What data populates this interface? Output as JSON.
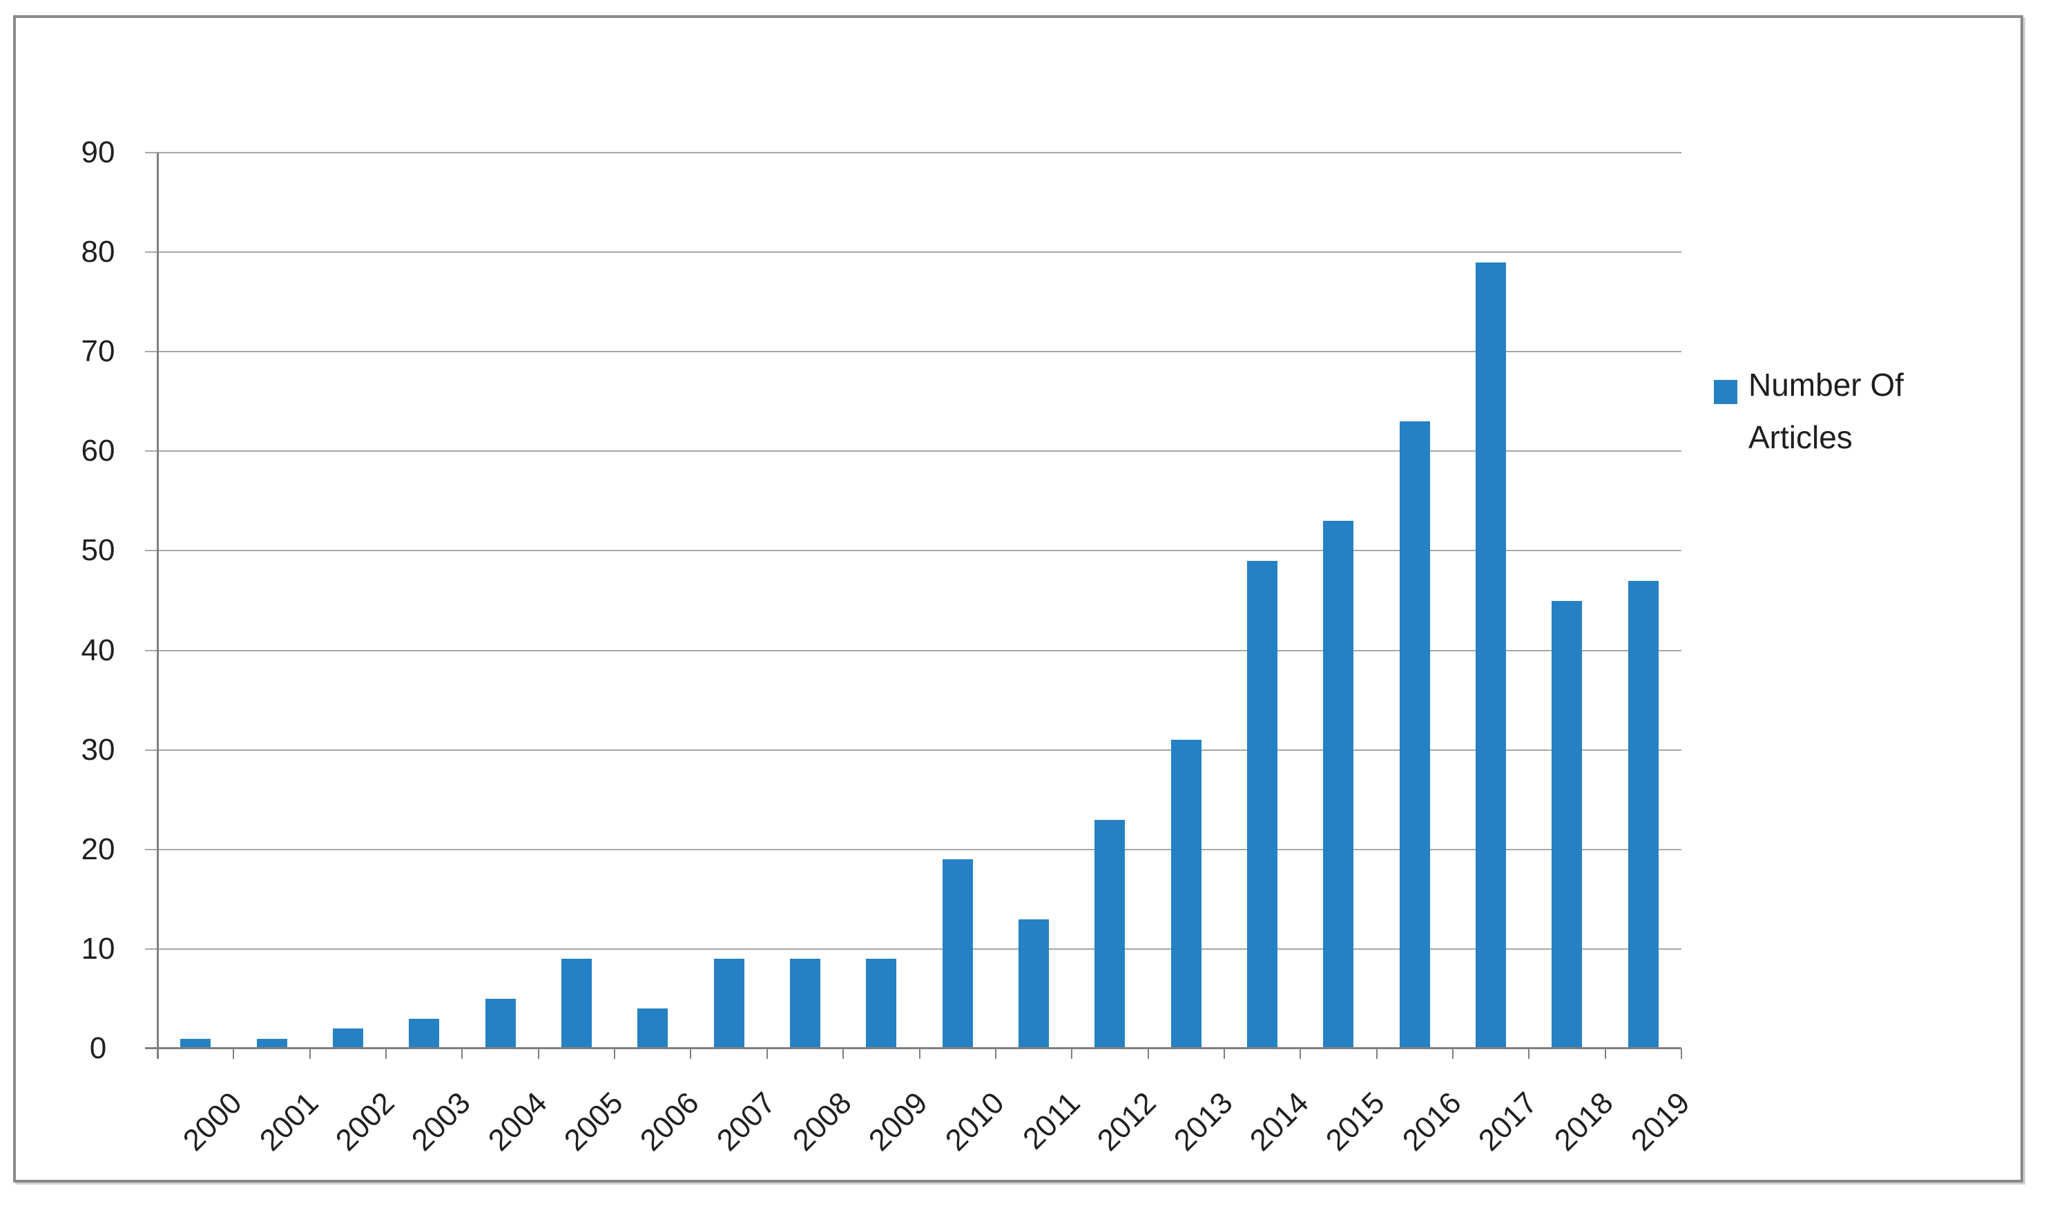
{
  "chart_data": {
    "type": "bar",
    "title": "",
    "xlabel": "",
    "ylabel": "",
    "categories": [
      "2000",
      "2001",
      "2002",
      "2003",
      "2004",
      "2005",
      "2006",
      "2007",
      "2008",
      "2009",
      "2010",
      "2011",
      "2012",
      "2013",
      "2014",
      "2015",
      "2016",
      "2017",
      "2018",
      "2019"
    ],
    "series": [
      {
        "name": "Number Of Articles",
        "values": [
          1,
          1,
          2,
          3,
          5,
          9,
          4,
          9,
          9,
          9,
          19,
          13,
          23,
          31,
          49,
          53,
          63,
          79,
          45,
          47
        ]
      }
    ],
    "ylim": [
      0,
      90
    ],
    "yticks": [
      0,
      10,
      20,
      30,
      40,
      50,
      60,
      70,
      80,
      90
    ],
    "grid": true,
    "legend_position": "right"
  },
  "legend": {
    "lines": [
      "Number Of",
      "Articles"
    ]
  },
  "colors": {
    "bar_fill": "#2581C4",
    "gridline": "#A6A6A6",
    "axis": "#808080",
    "text": "#1F1F1F",
    "frame_border": "#8A8A8A",
    "background": "#FFFFFF"
  }
}
